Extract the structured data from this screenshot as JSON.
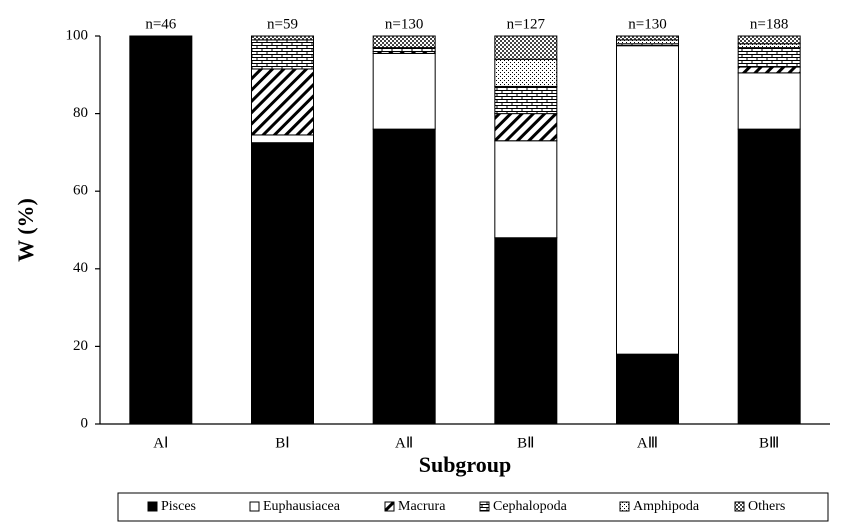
{
  "chart_data": {
    "type": "stacked_bar",
    "y_label": "W (%)",
    "x_label": "Subgroup",
    "categories": [
      "AⅠ",
      "BⅠ",
      "AⅡ",
      "BⅡ",
      "AⅢ",
      "BⅢ"
    ],
    "annotations": [
      "n=46",
      "n=59",
      "n=130",
      "n=127",
      "n=130",
      "n=188"
    ],
    "ylim": [
      0,
      100
    ],
    "yticks": [
      0,
      20,
      40,
      60,
      80,
      100
    ],
    "legend": "bottom",
    "series": [
      {
        "name": "Pisces",
        "color": "#000000",
        "pattern": "solid",
        "values": [
          100,
          72.5,
          76,
          48,
          18,
          76
        ]
      },
      {
        "name": "Euphausiacea",
        "color": "#ffffff",
        "pattern": "none",
        "values": [
          0,
          2,
          19.5,
          25,
          79.5,
          14.5
        ]
      },
      {
        "name": "Macrura",
        "color": "#000000",
        "pattern": "diagonal",
        "values": [
          0,
          17,
          0.5,
          7,
          0,
          1.5
        ]
      },
      {
        "name": "Cephalopoda",
        "color": "#000000",
        "pattern": "brick",
        "values": [
          0,
          7.5,
          1,
          7,
          0.5,
          5
        ]
      },
      {
        "name": "Amphipoda",
        "color": "#000000",
        "pattern": "dots",
        "values": [
          0,
          0,
          0,
          7,
          1,
          1
        ]
      },
      {
        "name": "Others",
        "color": "#000000",
        "pattern": "crosshatch",
        "values": [
          0,
          1,
          3,
          6,
          1,
          2
        ]
      }
    ]
  }
}
